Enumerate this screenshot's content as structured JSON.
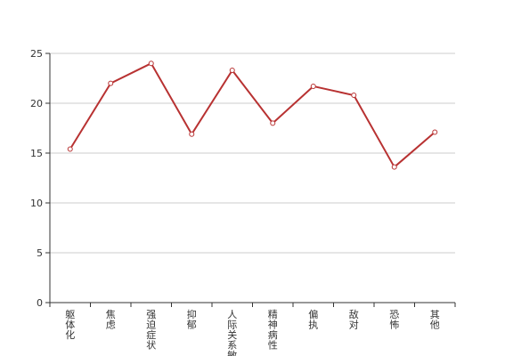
{
  "chart_data": {
    "type": "line",
    "title": "",
    "xlabel": "",
    "ylabel": "",
    "categories": [
      "躯体化",
      "焦虑",
      "强迫症状",
      "抑郁",
      "人际关系敏感",
      "精神病性",
      "偏执",
      "敌对",
      "恐怖",
      "其他"
    ],
    "series": [
      {
        "values": [
          15.4,
          22.0,
          24.0,
          16.9,
          23.3,
          18.0,
          21.7,
          20.8,
          13.6,
          17.1
        ]
      }
    ],
    "ylim": [
      0,
      25
    ],
    "yticks": [
      0,
      5,
      10,
      15,
      20,
      25
    ],
    "grid": true,
    "legend": "none",
    "colors": {
      "line": "#b83232",
      "grid": "#cccccc",
      "axis": "#333333"
    }
  }
}
